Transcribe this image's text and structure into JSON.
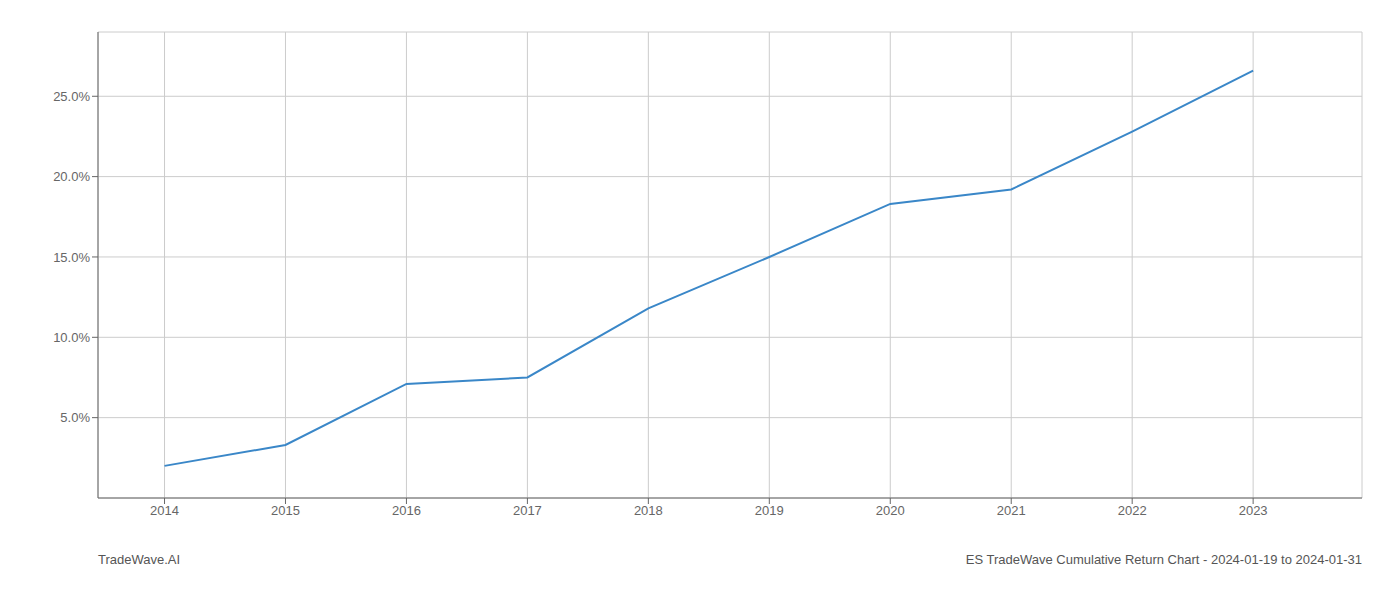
{
  "chart_data": {
    "type": "line",
    "title": "ES TradeWave Cumulative Return Chart - 2024-01-19 to 2024-01-31",
    "annotations": [
      "TradeWave.AI"
    ],
    "x": [
      2014,
      2015,
      2016,
      2017,
      2018,
      2019,
      2020,
      2021,
      2022,
      2023
    ],
    "values": [
      2.0,
      3.3,
      7.1,
      7.5,
      11.8,
      15.0,
      18.3,
      19.2,
      22.8,
      26.6
    ],
    "color": "#3a87c8",
    "xlim": [
      2013.45,
      2023.9
    ],
    "xticks": [
      2014,
      2015,
      2016,
      2017,
      2018,
      2019,
      2020,
      2021,
      2022,
      2023
    ],
    "ylim": [
      0,
      29
    ],
    "yticks": [
      {
        "value": 5.0,
        "label": "5.0%"
      },
      {
        "value": 10.0,
        "label": "10.0%"
      },
      {
        "value": 15.0,
        "label": "15.0%"
      },
      {
        "value": 20.0,
        "label": "20.0%"
      },
      {
        "value": 25.0,
        "label": "25.0%"
      }
    ],
    "grid": true
  }
}
